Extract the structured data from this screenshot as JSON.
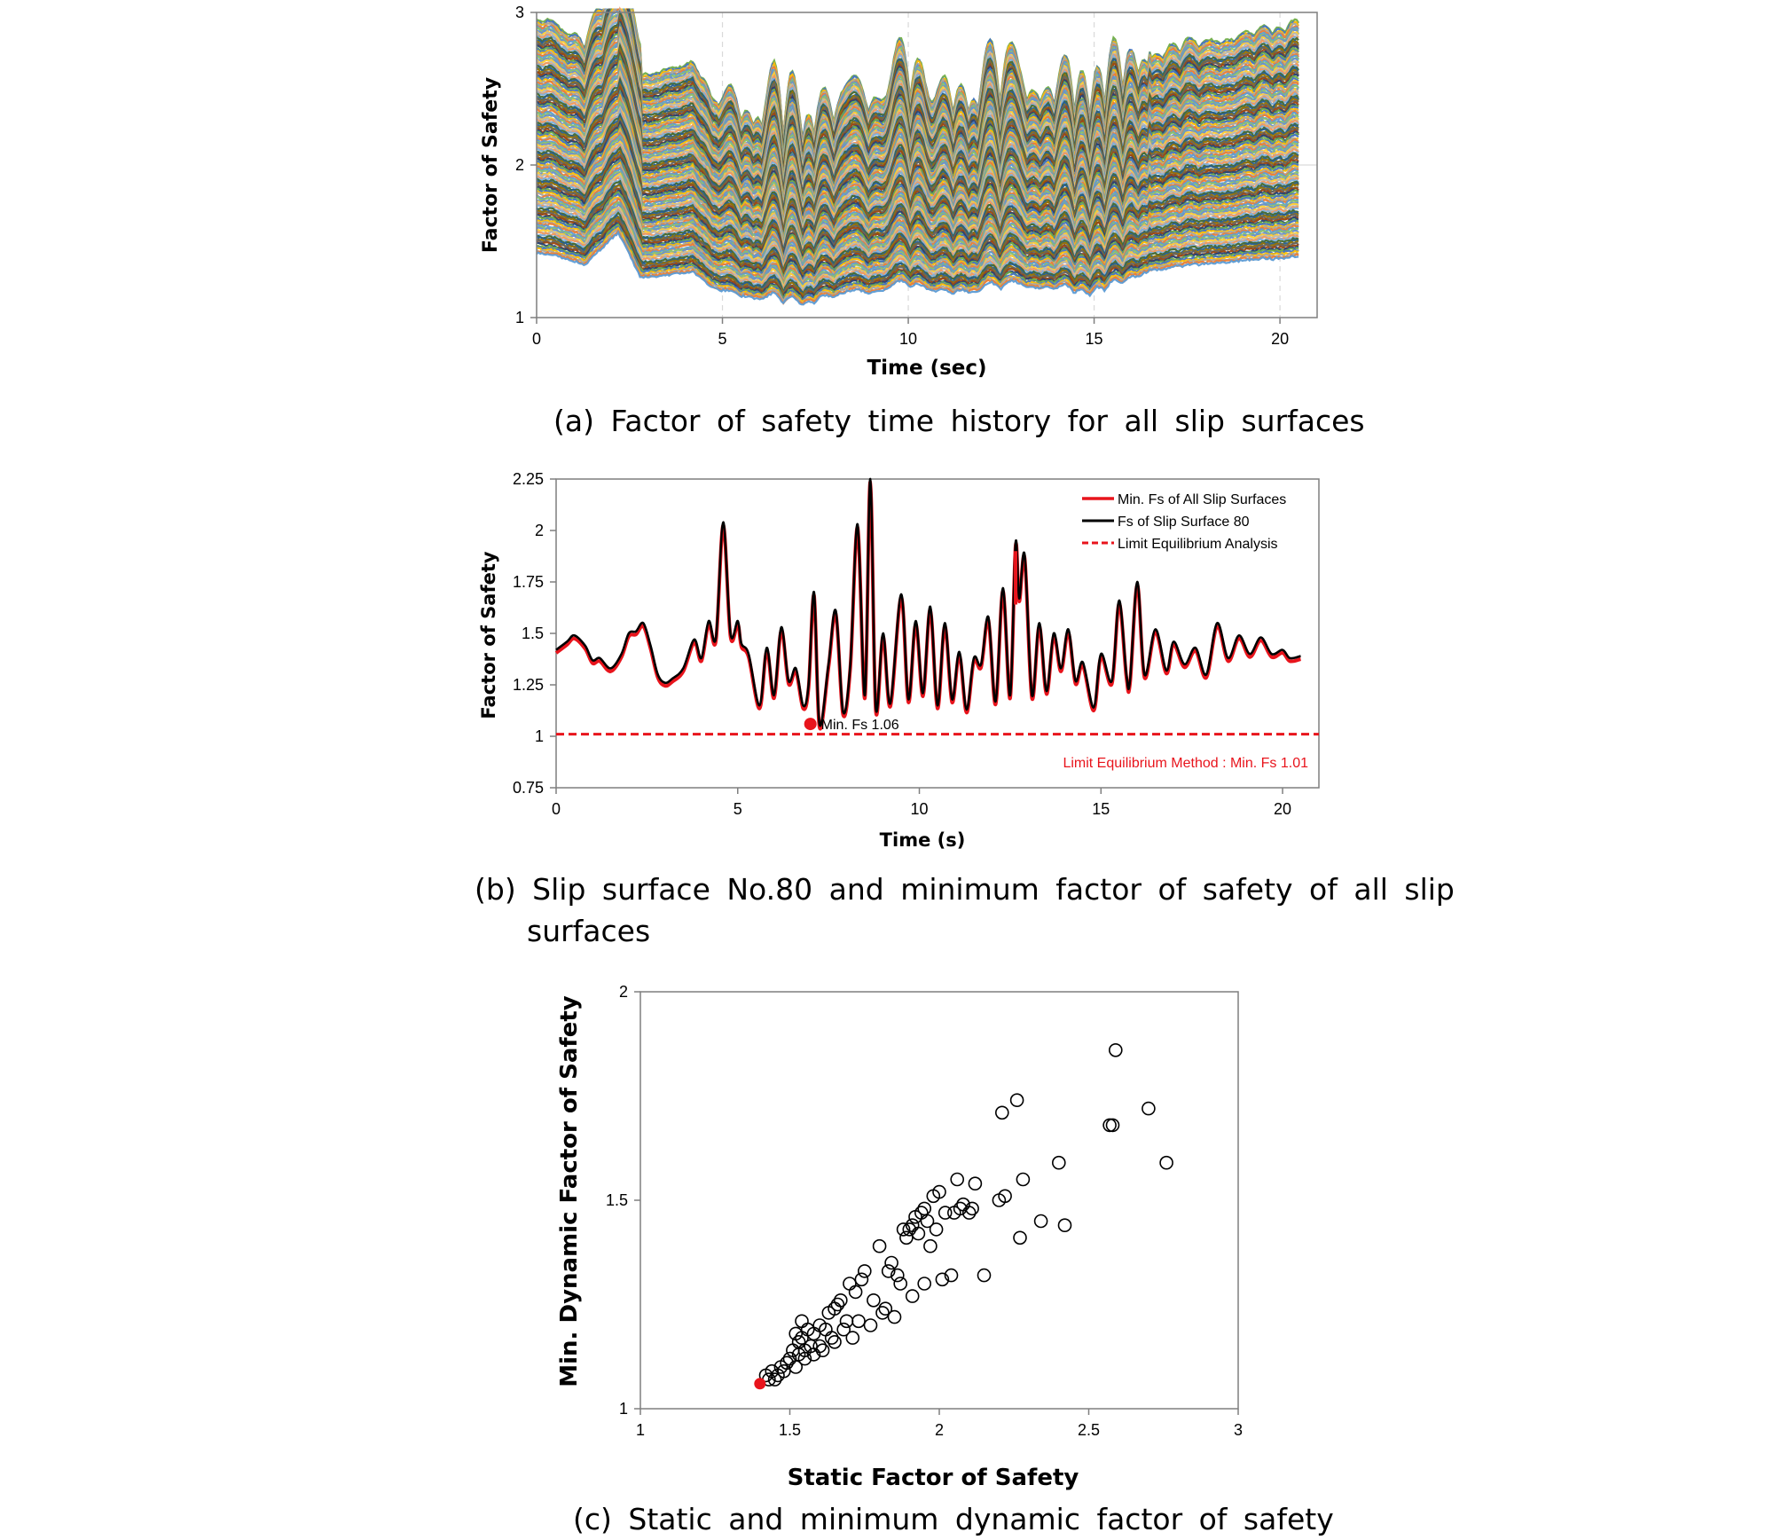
{
  "colors": {
    "red": "#e8141c",
    "black": "#000000",
    "grid": "#d9d9d9",
    "palette": [
      "#5b9bd5",
      "#ed7d31",
      "#a5a5a5",
      "#ffc000",
      "#4472c4",
      "#70ad47",
      "#264478",
      "#9e480e",
      "#636363",
      "#997300",
      "#255e91",
      "#43682b",
      "#7cafdd",
      "#f1975a",
      "#b7b7b7",
      "#ffcd33",
      "#698ed0",
      "#8cc168"
    ]
  },
  "captions": {
    "a": "(a) Factor of safety time history for all slip surfaces",
    "b_line1": "(b) Slip surface No.80 and minimum factor of safety of all slip",
    "b_line2": "surfaces",
    "c": "(c) Static and minimum dynamic factor of safety"
  },
  "chart_data": [
    {
      "id": "a",
      "type": "line",
      "xlabel": "Time (sec)",
      "ylabel": "Factor of Safety",
      "xlim": [
        0,
        21
      ],
      "ylim": [
        1,
        3
      ],
      "x_ticks": [
        "0",
        "5",
        "10",
        "15",
        "20"
      ],
      "y_ticks": [
        "1",
        "2",
        "3"
      ],
      "grid": "vertical dashed at x ticks, horizontal at y=2",
      "series_count": 150,
      "duration": 20.5,
      "min_fs_range": [
        1.07,
        1.45
      ],
      "max_fs_range": [
        1.6,
        3.0
      ],
      "envelope": [
        [
          0,
          1.42
        ],
        [
          0.6,
          1.4
        ],
        [
          1.3,
          1.34
        ],
        [
          2.2,
          1.55
        ],
        [
          2.8,
          1.26
        ],
        [
          3.6,
          1.28
        ],
        [
          4.2,
          1.3
        ],
        [
          4.7,
          1.2
        ],
        [
          5.3,
          1.14
        ],
        [
          6.0,
          1.12
        ],
        [
          7.0,
          1.07
        ],
        [
          8.0,
          1.13
        ],
        [
          9.0,
          1.16
        ],
        [
          10.0,
          1.2
        ],
        [
          11.0,
          1.15
        ],
        [
          12.0,
          1.17
        ],
        [
          13.0,
          1.2
        ],
        [
          14.0,
          1.18
        ],
        [
          14.8,
          1.14
        ],
        [
          15.5,
          1.19
        ],
        [
          16.5,
          1.3
        ],
        [
          17.5,
          1.34
        ],
        [
          18.5,
          1.36
        ],
        [
          19.5,
          1.38
        ],
        [
          20.5,
          1.39
        ]
      ]
    },
    {
      "id": "b",
      "type": "line",
      "xlabel": "Time (s)",
      "ylabel": "Factor of Safety",
      "xlim": [
        0,
        21
      ],
      "ylim": [
        0.75,
        2.25
      ],
      "x_ticks": [
        "0",
        "5",
        "10",
        "15",
        "20"
      ],
      "y_ticks": [
        "0.75",
        "1",
        "1.25",
        "1.5",
        "1.75",
        "2",
        "2.25"
      ],
      "legend": [
        "Min. Fs of All Slip Surfaces",
        "Fs of Slip Surface 80",
        "Limit Equilibrium Analysis"
      ],
      "legend_position": "top-right",
      "series": [
        {
          "name": "Fs of Slip Surface 80",
          "color": "#000000",
          "points": [
            [
              0,
              1.42
            ],
            [
              0.3,
              1.46
            ],
            [
              0.5,
              1.49
            ],
            [
              0.8,
              1.44
            ],
            [
              1.0,
              1.37
            ],
            [
              1.2,
              1.38
            ],
            [
              1.5,
              1.33
            ],
            [
              1.8,
              1.4
            ],
            [
              2.0,
              1.5
            ],
            [
              2.2,
              1.51
            ],
            [
              2.4,
              1.55
            ],
            [
              2.6,
              1.44
            ],
            [
              2.8,
              1.3
            ],
            [
              3.0,
              1.26
            ],
            [
              3.2,
              1.28
            ],
            [
              3.5,
              1.33
            ],
            [
              3.8,
              1.47
            ],
            [
              4.0,
              1.38
            ],
            [
              4.2,
              1.56
            ],
            [
              4.4,
              1.48
            ],
            [
              4.6,
              2.04
            ],
            [
              4.8,
              1.5
            ],
            [
              5.0,
              1.56
            ],
            [
              5.1,
              1.45
            ],
            [
              5.3,
              1.4
            ],
            [
              5.6,
              1.15
            ],
            [
              5.8,
              1.43
            ],
            [
              6.0,
              1.2
            ],
            [
              6.2,
              1.53
            ],
            [
              6.4,
              1.27
            ],
            [
              6.6,
              1.33
            ],
            [
              6.8,
              1.15
            ],
            [
              6.95,
              1.25
            ],
            [
              7.1,
              1.7
            ],
            [
              7.25,
              1.06
            ],
            [
              7.5,
              1.35
            ],
            [
              7.7,
              1.61
            ],
            [
              7.9,
              1.12
            ],
            [
              8.1,
              1.35
            ],
            [
              8.3,
              2.03
            ],
            [
              8.5,
              1.2
            ],
            [
              8.65,
              2.25
            ],
            [
              8.8,
              1.14
            ],
            [
              9.0,
              1.5
            ],
            [
              9.2,
              1.16
            ],
            [
              9.5,
              1.69
            ],
            [
              9.7,
              1.18
            ],
            [
              9.9,
              1.56
            ],
            [
              10.1,
              1.21
            ],
            [
              10.3,
              1.63
            ],
            [
              10.5,
              1.15
            ],
            [
              10.7,
              1.55
            ],
            [
              10.9,
              1.18
            ],
            [
              11.1,
              1.41
            ],
            [
              11.3,
              1.13
            ],
            [
              11.5,
              1.38
            ],
            [
              11.7,
              1.35
            ],
            [
              11.9,
              1.58
            ],
            [
              12.1,
              1.17
            ],
            [
              12.3,
              1.72
            ],
            [
              12.5,
              1.2
            ],
            [
              12.65,
              1.94
            ],
            [
              12.75,
              1.67
            ],
            [
              12.9,
              1.88
            ],
            [
              13.1,
              1.2
            ],
            [
              13.3,
              1.55
            ],
            [
              13.5,
              1.22
            ],
            [
              13.7,
              1.5
            ],
            [
              13.9,
              1.33
            ],
            [
              14.1,
              1.52
            ],
            [
              14.3,
              1.27
            ],
            [
              14.5,
              1.36
            ],
            [
              14.8,
              1.14
            ],
            [
              15.0,
              1.4
            ],
            [
              15.3,
              1.27
            ],
            [
              15.5,
              1.66
            ],
            [
              15.7,
              1.3
            ],
            [
              15.8,
              1.27
            ],
            [
              16.0,
              1.75
            ],
            [
              16.2,
              1.3
            ],
            [
              16.5,
              1.52
            ],
            [
              16.8,
              1.32
            ],
            [
              17.0,
              1.46
            ],
            [
              17.3,
              1.35
            ],
            [
              17.6,
              1.43
            ],
            [
              17.9,
              1.3
            ],
            [
              18.2,
              1.55
            ],
            [
              18.5,
              1.38
            ],
            [
              18.8,
              1.49
            ],
            [
              19.1,
              1.4
            ],
            [
              19.4,
              1.48
            ],
            [
              19.7,
              1.4
            ],
            [
              20.0,
              1.42
            ],
            [
              20.2,
              1.38
            ],
            [
              20.5,
              1.39
            ]
          ]
        },
        {
          "name": "Min. Fs of All Slip Surfaces",
          "color": "#e8141c",
          "offset": -0.015
        },
        {
          "name": "Limit Equilibrium Analysis",
          "color": "#e8141c",
          "style": "dashed",
          "y": 1.01
        }
      ],
      "annotations": [
        {
          "text": "Min. Fs 1.06",
          "x": 7.0,
          "y": 1.06
        },
        {
          "text": "Limit Equilibrium Method : Min. Fs 1.01"
        }
      ]
    },
    {
      "id": "c",
      "type": "scatter",
      "xlabel": "Static Factor of Safety",
      "ylabel": "Min. Dynamic Factor of Safety",
      "xlim": [
        1,
        3
      ],
      "ylim": [
        1,
        2
      ],
      "x_ticks": [
        "1",
        "1.5",
        "2",
        "2.5",
        "3"
      ],
      "y_ticks": [
        "1",
        "1.5",
        "2"
      ],
      "highlight": {
        "x": 1.4,
        "y": 1.06,
        "color": "#e8141c"
      },
      "points": [
        [
          1.42,
          1.08
        ],
        [
          1.44,
          1.09
        ],
        [
          1.45,
          1.07
        ],
        [
          1.47,
          1.1
        ],
        [
          1.48,
          1.09
        ],
        [
          1.5,
          1.12
        ],
        [
          1.51,
          1.14
        ],
        [
          1.52,
          1.1
        ],
        [
          1.53,
          1.16
        ],
        [
          1.54,
          1.17
        ],
        [
          1.55,
          1.12
        ],
        [
          1.56,
          1.19
        ],
        [
          1.57,
          1.15
        ],
        [
          1.58,
          1.18
        ],
        [
          1.6,
          1.2
        ],
        [
          1.61,
          1.14
        ],
        [
          1.62,
          1.19
        ],
        [
          1.63,
          1.23
        ],
        [
          1.64,
          1.17
        ],
        [
          1.65,
          1.24
        ],
        [
          1.66,
          1.25
        ],
        [
          1.67,
          1.26
        ],
        [
          1.68,
          1.19
        ],
        [
          1.7,
          1.3
        ],
        [
          1.71,
          1.17
        ],
        [
          1.72,
          1.28
        ],
        [
          1.74,
          1.31
        ],
        [
          1.75,
          1.33
        ],
        [
          1.77,
          1.2
        ],
        [
          1.8,
          1.39
        ],
        [
          1.82,
          1.24
        ],
        [
          1.83,
          1.33
        ],
        [
          1.84,
          1.35
        ],
        [
          1.85,
          1.22
        ],
        [
          1.86,
          1.32
        ],
        [
          1.88,
          1.43
        ],
        [
          1.89,
          1.41
        ],
        [
          1.9,
          1.43
        ],
        [
          1.91,
          1.44
        ],
        [
          1.92,
          1.46
        ],
        [
          1.93,
          1.42
        ],
        [
          1.94,
          1.47
        ],
        [
          1.95,
          1.48
        ],
        [
          1.96,
          1.45
        ],
        [
          1.97,
          1.39
        ],
        [
          1.98,
          1.51
        ],
        [
          1.99,
          1.43
        ],
        [
          2.0,
          1.52
        ],
        [
          2.01,
          1.31
        ],
        [
          2.02,
          1.47
        ],
        [
          2.04,
          1.32
        ],
        [
          2.05,
          1.47
        ],
        [
          2.06,
          1.55
        ],
        [
          2.07,
          1.48
        ],
        [
          2.08,
          1.49
        ],
        [
          2.1,
          1.47
        ],
        [
          2.11,
          1.48
        ],
        [
          2.12,
          1.54
        ],
        [
          2.15,
          1.32
        ],
        [
          2.2,
          1.5
        ],
        [
          2.21,
          1.71
        ],
        [
          2.22,
          1.51
        ],
        [
          2.26,
          1.74
        ],
        [
          2.27,
          1.41
        ],
        [
          2.28,
          1.55
        ],
        [
          2.34,
          1.45
        ],
        [
          2.4,
          1.59
        ],
        [
          2.42,
          1.44
        ],
        [
          2.57,
          1.68
        ],
        [
          2.58,
          1.68
        ],
        [
          2.59,
          1.86
        ],
        [
          2.7,
          1.72
        ],
        [
          2.76,
          1.59
        ],
        [
          1.43,
          1.07
        ],
        [
          1.46,
          1.08
        ],
        [
          1.49,
          1.11
        ],
        [
          1.53,
          1.13
        ],
        [
          1.55,
          1.14
        ],
        [
          1.58,
          1.13
        ],
        [
          1.6,
          1.15
        ],
        [
          1.65,
          1.16
        ],
        [
          1.69,
          1.21
        ],
        [
          1.73,
          1.21
        ],
        [
          1.78,
          1.26
        ],
        [
          1.81,
          1.23
        ],
        [
          1.87,
          1.3
        ],
        [
          1.91,
          1.27
        ],
        [
          1.95,
          1.3
        ],
        [
          1.52,
          1.18
        ],
        [
          1.54,
          1.21
        ]
      ]
    }
  ]
}
